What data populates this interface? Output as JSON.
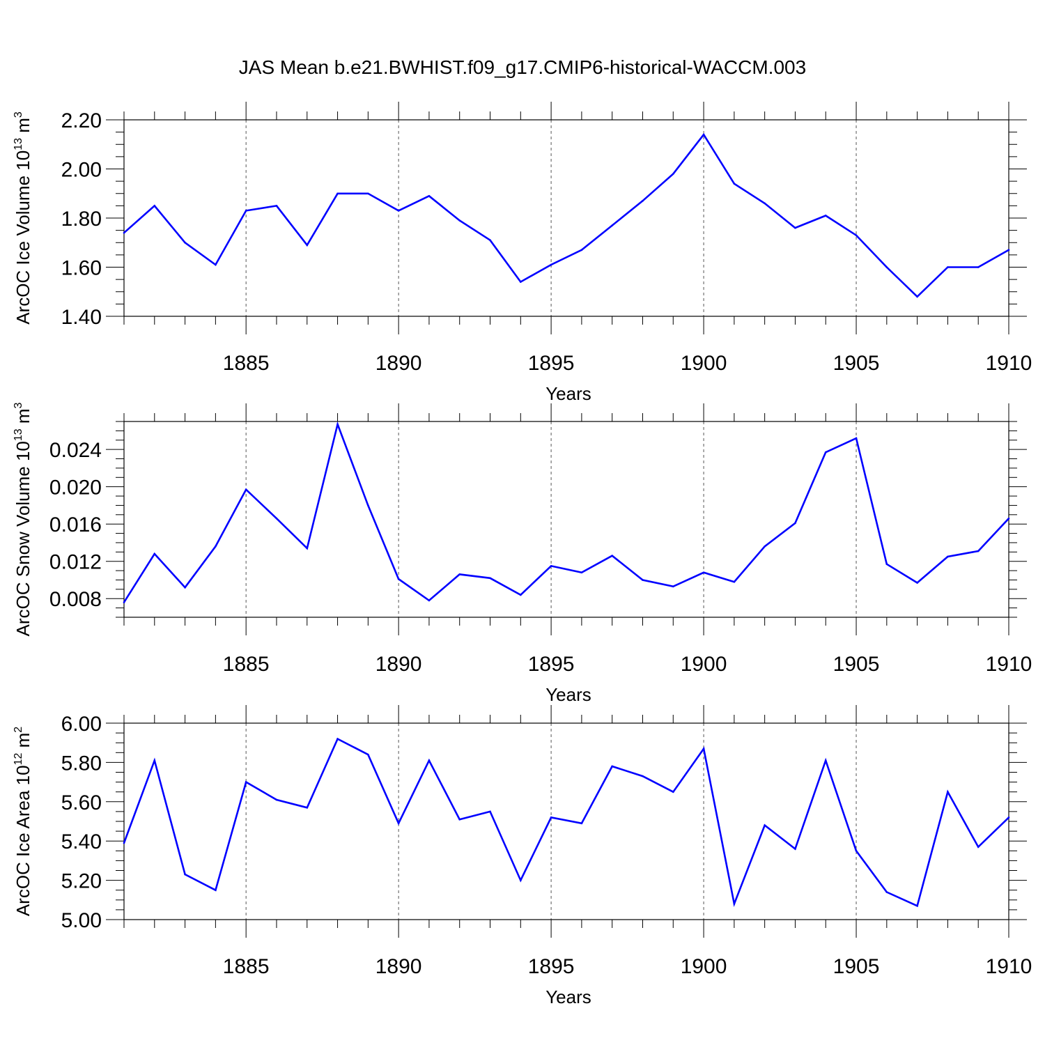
{
  "title": "JAS Mean b.e21.BWHIST.f09_g17.CMIP6-historical-WACCM.003",
  "colors": {
    "line": "#0000ff",
    "axes": "#000000",
    "grid": "#555555"
  },
  "chart_data": [
    {
      "type": "line",
      "xlabel": "Years",
      "ylabel": {
        "text": "ArcOC Ice Volume 10",
        "exp": "13",
        "unit": " m",
        "unit_exp": "3"
      },
      "xlim": [
        1881,
        1910
      ],
      "ylim": [
        1.4,
        2.2
      ],
      "xticks": [
        1885,
        1890,
        1895,
        1900,
        1905,
        1910
      ],
      "yticks": [
        1.4,
        1.6,
        1.8,
        2.0,
        2.2
      ],
      "ytick_labels": [
        "1.40",
        "1.60",
        "1.80",
        "2.00",
        "2.20"
      ],
      "grid": "vertical dashed at major x ticks",
      "x": [
        1881,
        1882,
        1883,
        1884,
        1885,
        1886,
        1887,
        1888,
        1889,
        1890,
        1891,
        1892,
        1893,
        1894,
        1895,
        1896,
        1897,
        1898,
        1899,
        1900,
        1901,
        1902,
        1903,
        1904,
        1905,
        1906,
        1907,
        1908,
        1909,
        1910
      ],
      "values": [
        1.74,
        1.85,
        1.7,
        1.61,
        1.83,
        1.85,
        1.69,
        1.9,
        1.9,
        1.83,
        1.89,
        1.79,
        1.71,
        1.54,
        1.61,
        1.67,
        1.77,
        1.87,
        1.98,
        2.14,
        1.94,
        1.86,
        1.76,
        1.81,
        1.73,
        1.6,
        1.48,
        1.6,
        1.6,
        1.67
      ]
    },
    {
      "type": "line",
      "xlabel": "Years",
      "ylabel": {
        "text": "ArcOC Snow Volume 10",
        "exp": "13",
        "unit": " m",
        "unit_exp": "3"
      },
      "xlim": [
        1881,
        1910
      ],
      "ylim": [
        0.006,
        0.027
      ],
      "xticks": [
        1885,
        1890,
        1895,
        1900,
        1905,
        1910
      ],
      "yticks": [
        0.008,
        0.012,
        0.016,
        0.02,
        0.024
      ],
      "ytick_labels": [
        "0.008",
        "0.012",
        "0.016",
        "0.020",
        "0.024"
      ],
      "grid": "vertical dashed at major x ticks",
      "x": [
        1881,
        1882,
        1883,
        1884,
        1885,
        1886,
        1887,
        1888,
        1889,
        1890,
        1891,
        1892,
        1893,
        1894,
        1895,
        1896,
        1897,
        1898,
        1899,
        1900,
        1901,
        1902,
        1903,
        1904,
        1905,
        1906,
        1907,
        1908,
        1909,
        1910
      ],
      "values": [
        0.0076,
        0.0128,
        0.0092,
        0.0136,
        0.0197,
        0.0166,
        0.0134,
        0.0267,
        0.018,
        0.0101,
        0.0078,
        0.0106,
        0.0102,
        0.0084,
        0.0115,
        0.0108,
        0.0126,
        0.01,
        0.0093,
        0.0108,
        0.0098,
        0.0136,
        0.0161,
        0.0237,
        0.0252,
        0.0117,
        0.0097,
        0.0125,
        0.0131,
        0.0166
      ]
    },
    {
      "type": "line",
      "xlabel": "Years",
      "ylabel": {
        "text": "ArcOC Ice Area 10",
        "exp": "12",
        "unit": " m",
        "unit_exp": "2"
      },
      "xlim": [
        1881,
        1910
      ],
      "ylim": [
        5.0,
        6.0
      ],
      "xticks": [
        1885,
        1890,
        1895,
        1900,
        1905,
        1910
      ],
      "yticks": [
        5.0,
        5.2,
        5.4,
        5.6,
        5.8,
        6.0
      ],
      "ytick_labels": [
        "5.00",
        "5.20",
        "5.40",
        "5.60",
        "5.80",
        "6.00"
      ],
      "grid": "vertical dashed at major x ticks",
      "x": [
        1881,
        1882,
        1883,
        1884,
        1885,
        1886,
        1887,
        1888,
        1889,
        1890,
        1891,
        1892,
        1893,
        1894,
        1895,
        1896,
        1897,
        1898,
        1899,
        1900,
        1901,
        1902,
        1903,
        1904,
        1905,
        1906,
        1907,
        1908,
        1909,
        1910
      ],
      "values": [
        5.39,
        5.81,
        5.23,
        5.15,
        5.7,
        5.61,
        5.57,
        5.92,
        5.84,
        5.49,
        5.81,
        5.51,
        5.55,
        5.2,
        5.52,
        5.49,
        5.78,
        5.73,
        5.65,
        5.87,
        5.08,
        5.48,
        5.36,
        5.81,
        5.35,
        5.14,
        5.07,
        5.65,
        5.37,
        5.52
      ]
    }
  ]
}
